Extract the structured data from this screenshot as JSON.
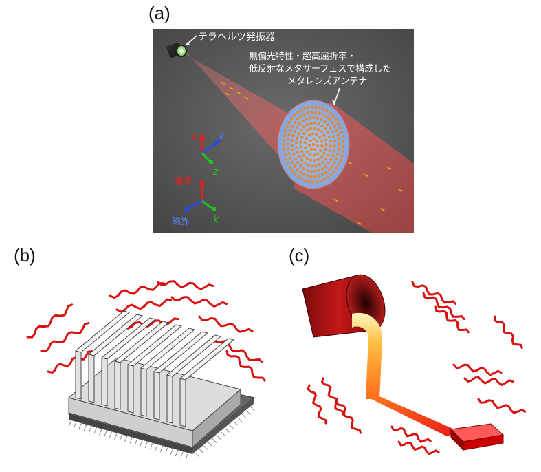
{
  "panels": {
    "a": {
      "label": "(a)",
      "emitter_label": "テラヘルツ発振器",
      "lens_label_lines": [
        "無偏光特性・超高屈折率・",
        "低反射なメタサーフェスで構成した",
        "メタレンズアンテナ"
      ],
      "axes": {
        "y": "y",
        "x": "x",
        "z": "z"
      },
      "field": {
        "electric": "電界",
        "magnetic": "磁界",
        "k": "k"
      },
      "colors": {
        "background": "#5a5a5a",
        "beam": "#ff6a6a",
        "electric": "#e02020",
        "magnetic": "#2b4bd8",
        "k": "#22c022"
      }
    },
    "b": {
      "label": "(b)"
    },
    "c": {
      "label": "(c)"
    }
  }
}
